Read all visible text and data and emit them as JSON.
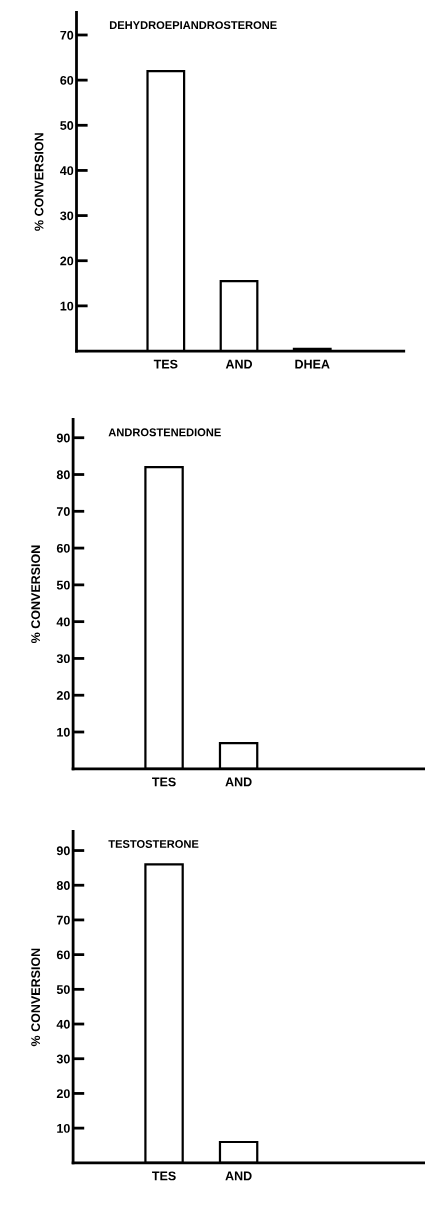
{
  "chart_data": [
    {
      "type": "bar",
      "title": "DEHYDROEPIANDROSTERONE",
      "ylabel": "% CONVERSION",
      "categories": [
        "TES",
        "AND",
        "DHEA"
      ],
      "values": [
        62,
        15.5,
        0.5
      ],
      "colors": [
        "#ffffff",
        "#ffffff",
        "#000000"
      ],
      "ylim": [
        0,
        75
      ],
      "yticks": [
        10,
        20,
        30,
        40,
        50,
        60,
        70
      ],
      "grid": false
    },
    {
      "type": "bar",
      "title": "ANDROSTENEDIONE",
      "ylabel": "% CONVERSION",
      "categories": [
        "TES",
        "AND"
      ],
      "values": [
        82,
        7
      ],
      "colors": [
        "#ffffff",
        "#ffffff"
      ],
      "ylim": [
        0,
        95
      ],
      "yticks": [
        10,
        20,
        30,
        40,
        50,
        60,
        70,
        80,
        90
      ],
      "grid": false
    },
    {
      "type": "bar",
      "title": "TESTOSTERONE",
      "ylabel": "% CONVERSION",
      "categories": [
        "TES",
        "AND"
      ],
      "values": [
        86,
        6
      ],
      "colors": [
        "#ffffff",
        "#ffffff"
      ],
      "ylim": [
        0,
        95.5
      ],
      "yticks": [
        10,
        20,
        30,
        40,
        50,
        60,
        70,
        80,
        90
      ],
      "grid": false
    }
  ]
}
